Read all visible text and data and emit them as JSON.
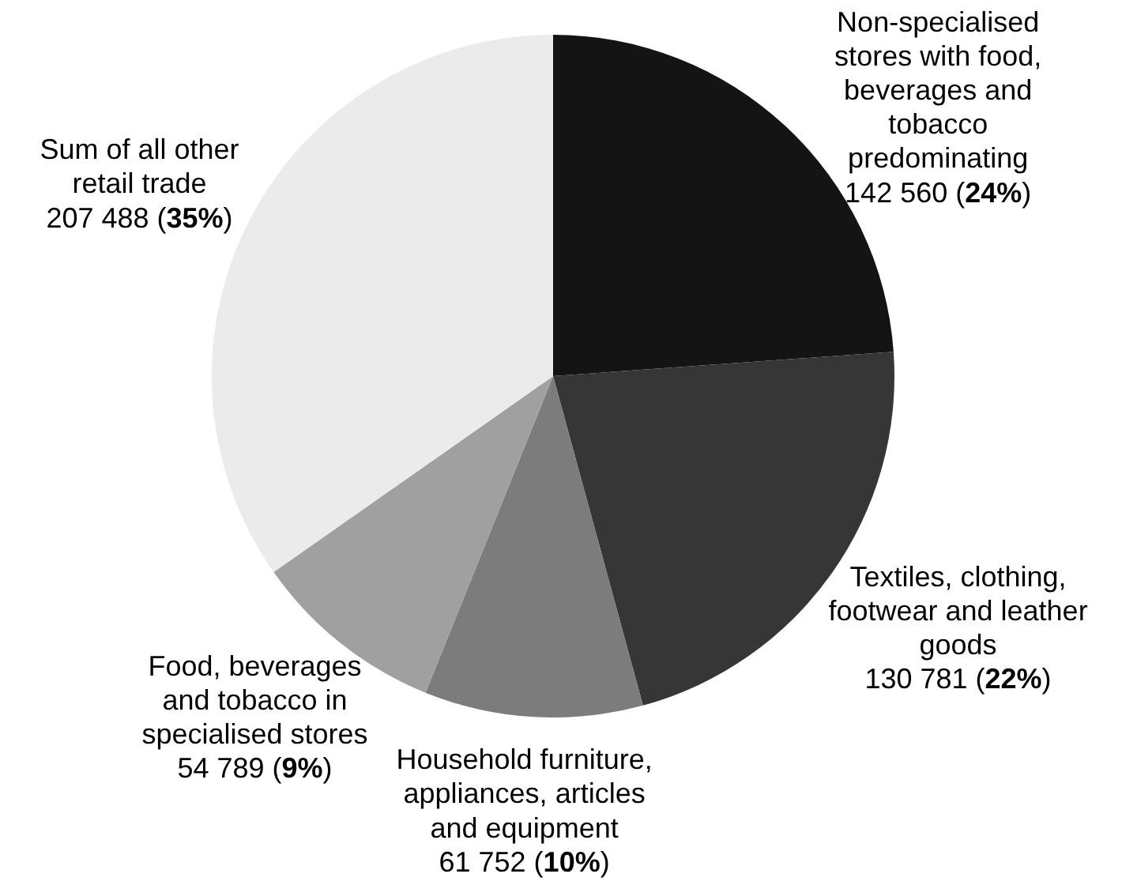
{
  "chart_data": {
    "type": "pie",
    "categories": [
      "Non-specialised\nstores with food,\nbeverages and\ntobacco\npredominating",
      "Textiles, clothing,\nfootwear and leather\ngoods",
      "Household furniture,\nappliances, articles\nand equipment",
      "Food, beverages\nand tobacco in\nspecialised stores",
      "Sum of all other\nretail trade"
    ],
    "values": [
      142560,
      130781,
      61752,
      54789,
      207488
    ],
    "colors": [
      "#141414",
      "#363636",
      "#7c7c7c",
      "#a0a0a0",
      "#ebebeb"
    ],
    "value_labels": [
      "142 560 (24%)",
      "130 781 (22%)",
      "61 752 (10%)",
      "54 789 (9%)",
      "207 488 (35%)"
    ]
  }
}
